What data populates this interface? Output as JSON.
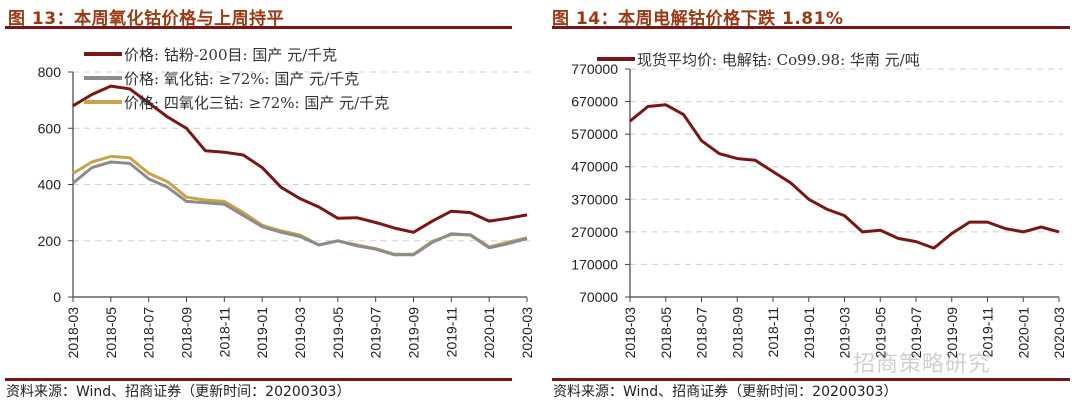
{
  "left": {
    "title": "图 13：本周氧化钴价格与上周持平",
    "source": "资料来源：Wind、招商证券（更新时间：20200303）"
  },
  "right": {
    "title": "图 14：本周电解钴价格下跌 1.81%",
    "source": "资料来源：Wind、招商证券（更新时间：20200303）"
  },
  "watermark": "招商策略研究",
  "colors": {
    "title": "#9b3a12",
    "rule": "#7b1616",
    "series_dark_red": "#7b1616",
    "series_gray": "#8c8c8c",
    "series_gold": "#c9a24a",
    "grid": "#d0d0d0",
    "axis": "#444444"
  },
  "chart_data": [
    {
      "type": "line",
      "title": "图 13：本周氧化钴价格与上周持平",
      "xlabel": "",
      "ylabel": "",
      "ylim": [
        0,
        800
      ],
      "yticks": [
        0,
        200,
        400,
        600,
        800
      ],
      "grid": "horizontal dashed",
      "legend_position": "top-left inside",
      "x_tick_labels": [
        "2018-03",
        "2018-05",
        "2018-07",
        "2018-09",
        "2018-11",
        "2019-01",
        "2019-03",
        "2019-05",
        "2019-07",
        "2019-09",
        "2019-11",
        "2020-01",
        "2020-03"
      ],
      "x": [
        "2018-03",
        "2018-04",
        "2018-05",
        "2018-06",
        "2018-07",
        "2018-08",
        "2018-09",
        "2018-10",
        "2018-11",
        "2018-12",
        "2019-01",
        "2019-02",
        "2019-03",
        "2019-04",
        "2019-05",
        "2019-06",
        "2019-07",
        "2019-08",
        "2019-09",
        "2019-10",
        "2019-11",
        "2019-12",
        "2020-01",
        "2020-02",
        "2020-03"
      ],
      "series": [
        {
          "name": "价格: 钴粉-200目: 国产 元/千克",
          "color": "#7b1616",
          "values": [
            680,
            720,
            750,
            740,
            690,
            640,
            600,
            520,
            515,
            505,
            460,
            390,
            350,
            320,
            280,
            282,
            265,
            245,
            230,
            270,
            305,
            300,
            270,
            280,
            292
          ]
        },
        {
          "name": "价格: 氧化钴: ≥72%: 国产 元/千克",
          "color": "#8c8c8c",
          "values": [
            405,
            460,
            480,
            475,
            420,
            390,
            340,
            335,
            330,
            290,
            250,
            230,
            215,
            185,
            200,
            182,
            170,
            150,
            150,
            195,
            225,
            220,
            175,
            190,
            208
          ]
        },
        {
          "name": "价格: 四氧化三钴: ≥72%: 国产 元/千克",
          "color": "#c9a24a",
          "values": [
            440,
            480,
            500,
            495,
            440,
            410,
            355,
            345,
            340,
            300,
            255,
            235,
            220,
            185,
            200,
            185,
            172,
            152,
            152,
            198,
            222,
            222,
            178,
            195,
            210
          ]
        }
      ]
    },
    {
      "type": "line",
      "title": "图 14：本周电解钴价格下跌 1.81%",
      "xlabel": "",
      "ylabel": "",
      "ylim": [
        70000,
        770000
      ],
      "yticks": [
        70000,
        170000,
        270000,
        370000,
        470000,
        570000,
        670000,
        770000
      ],
      "grid": "horizontal dashed",
      "legend_position": "top inside",
      "x_tick_labels": [
        "2018-03",
        "2018-05",
        "2018-07",
        "2018-09",
        "2018-11",
        "2019-01",
        "2019-03",
        "2019-05",
        "2019-07",
        "2019-09",
        "2019-11",
        "2020-01",
        "2020-03"
      ],
      "x": [
        "2018-03",
        "2018-04",
        "2018-05",
        "2018-06",
        "2018-07",
        "2018-08",
        "2018-09",
        "2018-10",
        "2018-11",
        "2018-12",
        "2019-01",
        "2019-02",
        "2019-03",
        "2019-04",
        "2019-05",
        "2019-06",
        "2019-07",
        "2019-08",
        "2019-09",
        "2019-10",
        "2019-11",
        "2019-12",
        "2020-01",
        "2020-02",
        "2020-03"
      ],
      "series": [
        {
          "name": "现货平均价: 电解钴: Co99.98: 华南 元/吨",
          "color": "#7b1616",
          "values": [
            610000,
            655000,
            660000,
            630000,
            550000,
            510000,
            495000,
            490000,
            455000,
            420000,
            370000,
            340000,
            320000,
            270000,
            275000,
            250000,
            240000,
            220000,
            265000,
            300000,
            300000,
            280000,
            270000,
            285000,
            270000
          ]
        }
      ]
    }
  ]
}
